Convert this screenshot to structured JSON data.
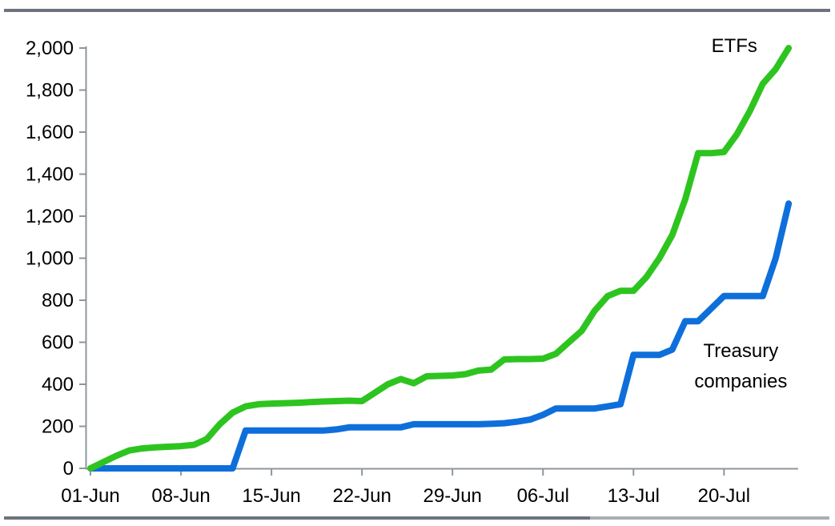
{
  "colors": {
    "etfs_green": "#2ec41f",
    "treasury_blue": "#0e6fdb",
    "axis_gray": "#8f959d",
    "rule_dark": "#6d737d",
    "rule_light": "#a9aeb5"
  },
  "chart_data": {
    "type": "line",
    "title": "",
    "xlabel": "",
    "ylabel": "",
    "grid": false,
    "legend_position": "inline-annotations",
    "ylim": [
      0,
      2000
    ],
    "y_ticks": [
      0,
      200,
      400,
      600,
      800,
      1000,
      1200,
      1400,
      1600,
      1800,
      2000
    ],
    "y_tick_labels": [
      "0",
      "200",
      "400",
      "600",
      "800",
      "1,000",
      "1,200",
      "1,400",
      "1,600",
      "1,800",
      "2,000"
    ],
    "x_axis_tick_labels": [
      "01-Jun",
      "08-Jun",
      "15-Jun",
      "22-Jun",
      "29-Jun",
      "06-Jul",
      "13-Jul",
      "20-Jul"
    ],
    "x_axis_tick_indices": [
      0,
      7,
      14,
      21,
      28,
      35,
      42,
      49
    ],
    "x": [
      "01-Jun",
      "02-Jun",
      "03-Jun",
      "04-Jun",
      "05-Jun",
      "06-Jun",
      "07-Jun",
      "08-Jun",
      "09-Jun",
      "10-Jun",
      "11-Jun",
      "12-Jun",
      "13-Jun",
      "14-Jun",
      "15-Jun",
      "16-Jun",
      "17-Jun",
      "18-Jun",
      "19-Jun",
      "20-Jun",
      "21-Jun",
      "22-Jun",
      "23-Jun",
      "24-Jun",
      "25-Jun",
      "26-Jun",
      "27-Jun",
      "28-Jun",
      "29-Jun",
      "30-Jun",
      "01-Jul",
      "02-Jul",
      "03-Jul",
      "04-Jul",
      "05-Jul",
      "06-Jul",
      "07-Jul",
      "08-Jul",
      "09-Jul",
      "10-Jul",
      "11-Jul",
      "12-Jul",
      "13-Jul",
      "14-Jul",
      "15-Jul",
      "16-Jul",
      "17-Jul",
      "18-Jul",
      "19-Jul",
      "20-Jul",
      "21-Jul",
      "22-Jul",
      "23-Jul",
      "24-Jul",
      "25-Jul"
    ],
    "series": [
      {
        "name": "ETFs",
        "color": "#2ec41f",
        "values": [
          0,
          30,
          60,
          85,
          95,
          100,
          103,
          106,
          112,
          140,
          210,
          265,
          295,
          305,
          308,
          310,
          312,
          315,
          318,
          320,
          322,
          320,
          360,
          400,
          425,
          405,
          438,
          440,
          442,
          448,
          465,
          470,
          518,
          520,
          520,
          522,
          545,
          600,
          655,
          750,
          820,
          845,
          845,
          910,
          1000,
          1110,
          1280,
          1500,
          1500,
          1505,
          1590,
          1700,
          1830,
          1900,
          2000
        ]
      },
      {
        "name": "Treasury companies",
        "color": "#0e6fdb",
        "values": [
          0,
          0,
          0,
          0,
          0,
          0,
          0,
          0,
          0,
          0,
          0,
          0,
          180,
          180,
          180,
          180,
          180,
          180,
          180,
          185,
          195,
          195,
          195,
          195,
          195,
          210,
          210,
          210,
          210,
          210,
          210,
          212,
          215,
          222,
          232,
          255,
          285,
          285,
          285,
          285,
          295,
          305,
          540,
          540,
          540,
          565,
          700,
          700,
          760,
          820,
          820,
          820,
          820,
          1000,
          1260
        ]
      }
    ],
    "annotations": [
      {
        "lines": [
          "ETFs"
        ],
        "day": 49.8,
        "value": 2011
      },
      {
        "lines": [
          "Treasury",
          "companies"
        ],
        "day": 50.3,
        "value": 560
      }
    ]
  }
}
